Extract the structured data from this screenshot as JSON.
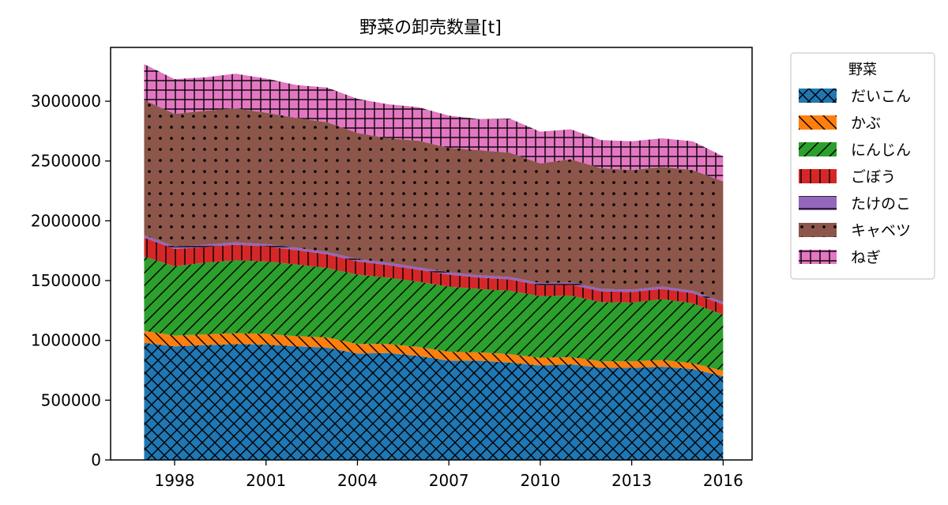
{
  "chart_data": {
    "type": "area",
    "stacked": true,
    "title": "野菜の卸売数量[t]",
    "xlabel": "",
    "ylabel": "",
    "x": [
      1997,
      1998,
      1999,
      2000,
      2001,
      2002,
      2003,
      2004,
      2005,
      2006,
      2007,
      2008,
      2009,
      2010,
      2011,
      2012,
      2013,
      2014,
      2015,
      2016
    ],
    "xticks": [
      1998,
      2001,
      2004,
      2007,
      2010,
      2013,
      2016
    ],
    "yticks": [
      0,
      500000,
      1000000,
      1500000,
      2000000,
      2500000,
      3000000
    ],
    "ylim": [
      0,
      3450000
    ],
    "xlim": [
      1995.9,
      2016.95
    ],
    "legend": {
      "title": "野菜",
      "placement": "outside-right-top"
    },
    "series": [
      {
        "name": "だいこん",
        "color": "#1f77b4",
        "hatch": "cross",
        "values": [
          980000,
          950000,
          960000,
          970000,
          965000,
          950000,
          940000,
          890000,
          895000,
          870000,
          830000,
          830000,
          815000,
          790000,
          800000,
          770000,
          770000,
          780000,
          760000,
          700000
        ]
      },
      {
        "name": "かぶ",
        "color": "#ff7f0e",
        "hatch": "backslash",
        "values": [
          100000,
          90000,
          90000,
          90000,
          90000,
          85000,
          85000,
          80000,
          75000,
          75000,
          75000,
          70000,
          70000,
          65000,
          60000,
          55000,
          55000,
          55000,
          50000,
          45000
        ]
      },
      {
        "name": "にんじん",
        "color": "#2ca02c",
        "hatch": "slash",
        "values": [
          620000,
          580000,
          600000,
          610000,
          605000,
          600000,
          580000,
          580000,
          555000,
          545000,
          545000,
          530000,
          530000,
          515000,
          515000,
          495000,
          490000,
          510000,
          500000,
          470000
        ]
      },
      {
        "name": "ごぼう",
        "color": "#d62728",
        "hatch": "vertical",
        "values": [
          160000,
          145000,
          130000,
          130000,
          125000,
          120000,
          115000,
          110000,
          105000,
          100000,
          100000,
          95000,
          95000,
          90000,
          90000,
          90000,
          90000,
          85000,
          85000,
          85000
        ]
      },
      {
        "name": "たけのこ",
        "color": "#9467bd",
        "hatch": "horizontal",
        "values": [
          20000,
          20000,
          20000,
          20000,
          20000,
          20000,
          20000,
          20000,
          20000,
          20000,
          20000,
          20000,
          20000,
          20000,
          20000,
          20000,
          20000,
          20000,
          20000,
          20000
        ]
      },
      {
        "name": "キャベツ",
        "color": "#8c564b",
        "hatch": "dots",
        "values": [
          1130000,
          1110000,
          1120000,
          1120000,
          1100000,
          1085000,
          1085000,
          1055000,
          1040000,
          1060000,
          1040000,
          1045000,
          1040000,
          1000000,
          1030000,
          1010000,
          1000000,
          1000000,
          1010000,
          1010000
        ]
      },
      {
        "name": "ねぎ",
        "color": "#e377c2",
        "hatch": "grid",
        "values": [
          300000,
          290000,
          280000,
          290000,
          285000,
          275000,
          290000,
          285000,
          285000,
          280000,
          270000,
          260000,
          285000,
          265000,
          250000,
          235000,
          240000,
          240000,
          240000,
          210000
        ]
      }
    ]
  }
}
